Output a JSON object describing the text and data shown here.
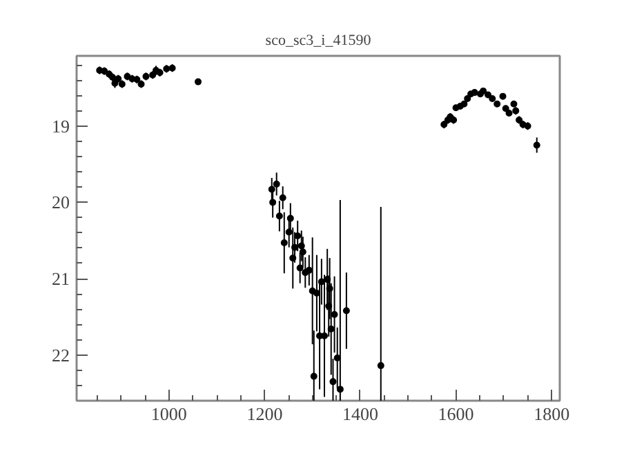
{
  "chart_data": {
    "type": "scatter",
    "title": "sco_sc3_i_41590",
    "marker": "circle",
    "grid": false,
    "xlim": [
      807,
      1817
    ],
    "ylim": [
      22.6,
      18.08
    ],
    "xticks": [
      {
        "value": 850,
        "label": null
      },
      {
        "value": 900,
        "label": null
      },
      {
        "value": 950,
        "label": null
      },
      1000,
      {
        "value": 1050,
        "label": null
      },
      {
        "value": 1100,
        "label": null
      },
      {
        "value": 1150,
        "label": null
      },
      1200,
      {
        "value": 1250,
        "label": null
      },
      {
        "value": 1300,
        "label": null
      },
      {
        "value": 1350,
        "label": null
      },
      1400,
      {
        "value": 1450,
        "label": null
      },
      {
        "value": 1500,
        "label": null
      },
      {
        "value": 1550,
        "label": null
      },
      1600,
      {
        "value": 1650,
        "label": null
      },
      {
        "value": 1700,
        "label": null
      },
      {
        "value": 1750,
        "label": null
      },
      1800
    ],
    "yticks": [
      {
        "value": 18.2,
        "label": null
      },
      {
        "value": 18.4,
        "label": null
      },
      {
        "value": 18.6,
        "label": null
      },
      {
        "value": 18.8,
        "label": null
      },
      19,
      {
        "value": 19.2,
        "label": null
      },
      {
        "value": 19.4,
        "label": null
      },
      {
        "value": 19.6,
        "label": null
      },
      {
        "value": 19.8,
        "label": null
      },
      20,
      {
        "value": 20.2,
        "label": null
      },
      {
        "value": 20.4,
        "label": null
      },
      {
        "value": 20.6,
        "label": null
      },
      {
        "value": 20.8,
        "label": null
      },
      21,
      {
        "value": 21.2,
        "label": null
      },
      {
        "value": 21.4,
        "label": null
      },
      {
        "value": 21.6,
        "label": null
      },
      {
        "value": 21.8,
        "label": null
      },
      22,
      {
        "value": 22.2,
        "label": null
      },
      {
        "value": 22.4,
        "label": null
      }
    ],
    "series": [
      {
        "color": "#000000",
        "x": [
          855,
          865,
          875,
          882,
          887,
          894,
          902,
          913,
          923,
          933,
          942,
          952,
          966,
          973,
          981,
          995,
          1007,
          1061,
          1215,
          1217,
          1225,
          1231,
          1238,
          1241,
          1251,
          1254,
          1259,
          1263,
          1269,
          1274,
          1277,
          1280,
          1285,
          1293,
          1300,
          1303,
          1309,
          1315,
          1319,
          1325,
          1331,
          1334,
          1336,
          1339,
          1343,
          1346,
          1352,
          1358,
          1371,
          1443,
          1575,
          1583,
          1588,
          1595,
          1600,
          1609,
          1617,
          1624,
          1631,
          1639,
          1651,
          1657,
          1667,
          1676,
          1686,
          1698,
          1704,
          1711,
          1721,
          1725,
          1732,
          1740,
          1750,
          1769
        ],
        "values": [
          18.27,
          18.28,
          18.32,
          18.36,
          18.44,
          18.38,
          18.45,
          18.35,
          18.38,
          18.39,
          18.45,
          18.35,
          18.33,
          18.27,
          18.3,
          18.25,
          18.24,
          18.42,
          19.83,
          20.0,
          19.76,
          20.18,
          19.94,
          20.53,
          20.39,
          20.21,
          20.73,
          20.59,
          20.44,
          20.86,
          20.57,
          20.65,
          20.92,
          20.89,
          21.16,
          22.28,
          21.19,
          21.75,
          21.04,
          21.75,
          21.01,
          21.36,
          21.13,
          21.66,
          22.35,
          21.47,
          22.04,
          22.45,
          21.42,
          22.14,
          18.98,
          18.92,
          18.88,
          18.92,
          18.76,
          18.74,
          18.71,
          18.64,
          18.58,
          18.56,
          18.58,
          18.54,
          18.59,
          18.64,
          18.71,
          18.61,
          18.77,
          18.83,
          18.71,
          18.8,
          18.92,
          18.98,
          19.0,
          19.25
        ],
        "errors": [
          0.05,
          0.05,
          0.05,
          0.05,
          0.06,
          0.05,
          0.05,
          0.05,
          0.05,
          0.05,
          0.05,
          0.05,
          0.05,
          0.06,
          0.05,
          0.05,
          0.05,
          0.04,
          0.15,
          0.2,
          0.15,
          0.2,
          0.15,
          0.4,
          0.2,
          0.2,
          0.4,
          0.2,
          0.2,
          0.2,
          0.2,
          0.2,
          0.2,
          0.2,
          0.7,
          0.6,
          0.5,
          0.7,
          0.3,
          0.8,
          0.4,
          0.4,
          0.4,
          0.6,
          0.3,
          0.5,
          0.4,
          2.48,
          0.5,
          2.08,
          0.05,
          0.05,
          0.05,
          0.05,
          0.04,
          0.04,
          0.04,
          0.04,
          0.04,
          0.04,
          0.04,
          0.04,
          0.04,
          0.04,
          0.04,
          0.04,
          0.04,
          0.04,
          0.04,
          0.05,
          0.05,
          0.05,
          0.05,
          0.1
        ]
      }
    ]
  }
}
